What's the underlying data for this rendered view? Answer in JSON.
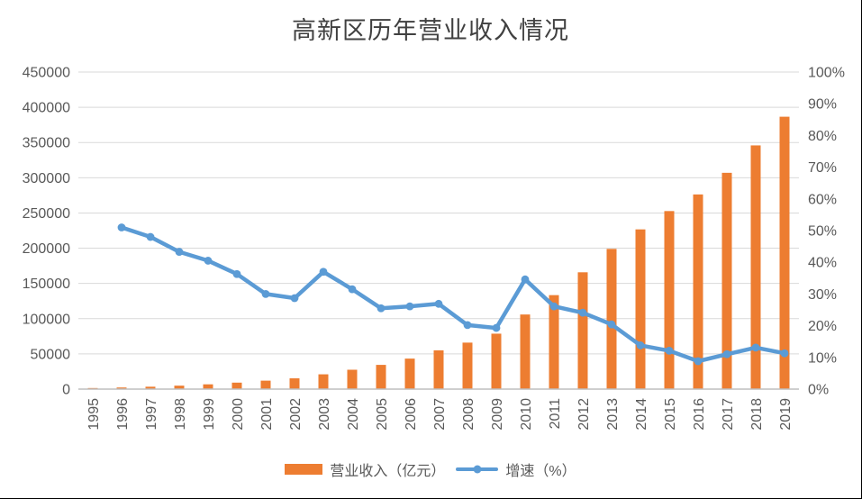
{
  "chart_data": {
    "type": "combo",
    "title": "高新区历年营业收入情况",
    "categories": [
      "1995",
      "1996",
      "1997",
      "1998",
      "1999",
      "2000",
      "2001",
      "2002",
      "2003",
      "2004",
      "2005",
      "2006",
      "2007",
      "2008",
      "2009",
      "2010",
      "2011",
      "2012",
      "2013",
      "2014",
      "2015",
      "2016",
      "2017",
      "2018",
      "2019"
    ],
    "series": [
      {
        "name": "营业收入（亿元）",
        "type": "bar",
        "axis": "left",
        "color": "#ED7D31",
        "values": [
          1500,
          2300,
          3400,
          4900,
          6800,
          9200,
          12000,
          15300,
          21000,
          27500,
          34400,
          43300,
          55000,
          66000,
          78700,
          105900,
          133400,
          165800,
          199000,
          226700,
          252700,
          276300,
          307000,
          345900,
          386600
        ]
      },
      {
        "name": "增速（%）",
        "type": "line",
        "axis": "right",
        "color": "#5B9BD5",
        "values": [
          null,
          51,
          48,
          43.3,
          40.5,
          36.3,
          30,
          28.7,
          37,
          31.5,
          25.5,
          26.1,
          26.9,
          20.2,
          19.3,
          34.6,
          26.1,
          24.1,
          20.4,
          13.8,
          12.1,
          8.8,
          11,
          13.1,
          11.3
        ]
      }
    ],
    "left_axis": {
      "min": 0,
      "max": 450000,
      "step": 50000,
      "tick_labels": [
        "0",
        "50000",
        "100000",
        "150000",
        "200000",
        "250000",
        "300000",
        "350000",
        "400000",
        "450000"
      ]
    },
    "right_axis": {
      "min": 0,
      "max": 100,
      "step": 10,
      "tick_labels": [
        "0%",
        "10%",
        "20%",
        "30%",
        "40%",
        "50%",
        "60%",
        "70%",
        "80%",
        "90%",
        "100%"
      ]
    },
    "grid": true,
    "legend_position": "bottom",
    "colors": {
      "gridline": "#D9D9D9",
      "axis_line": "#BFBFBF",
      "axis_text": "#595959",
      "title_text": "#404040"
    }
  }
}
